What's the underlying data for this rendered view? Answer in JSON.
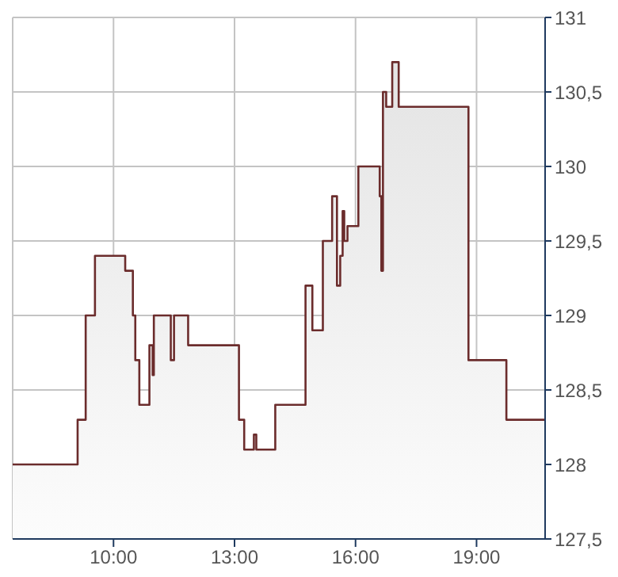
{
  "chart_data": {
    "type": "area",
    "x": [
      7.5,
      9.11,
      9.11,
      9.31,
      9.31,
      9.54,
      9.54,
      10.29,
      10.29,
      10.48,
      10.48,
      10.54,
      10.54,
      10.64,
      10.64,
      10.89,
      10.89,
      10.97,
      10.97,
      11.0,
      11.0,
      11.42,
      11.42,
      11.5,
      11.5,
      11.85,
      11.85,
      13.11,
      13.11,
      13.24,
      13.24,
      13.48,
      13.48,
      13.54,
      13.54,
      14.01,
      14.01,
      14.76,
      14.76,
      14.93,
      14.93,
      15.19,
      15.19,
      15.42,
      15.42,
      15.54,
      15.54,
      15.62,
      15.62,
      15.68,
      15.68,
      15.72,
      15.72,
      15.8,
      15.8,
      16.07,
      16.07,
      16.6,
      16.6,
      16.64,
      16.64,
      16.68,
      16.68,
      16.76,
      16.76,
      16.91,
      16.91,
      17.07,
      17.07,
      18.8,
      18.8,
      19.74,
      19.74,
      20.7
    ],
    "series": [
      {
        "color": "#6b2c2c",
        "values": [
          128.0,
          128.0,
          128.3,
          128.3,
          129.0,
          129.0,
          129.4,
          129.4,
          129.3,
          129.3,
          129.0,
          129.0,
          128.7,
          128.7,
          128.4,
          128.4,
          128.8,
          128.8,
          128.6,
          128.6,
          129.0,
          129.0,
          128.7,
          128.7,
          129.0,
          129.0,
          128.8,
          128.8,
          128.3,
          128.3,
          128.1,
          128.1,
          128.2,
          128.2,
          128.1,
          128.1,
          128.4,
          128.4,
          129.2,
          129.2,
          128.9,
          128.9,
          129.5,
          129.5,
          129.8,
          129.8,
          129.2,
          129.2,
          129.4,
          129.4,
          129.7,
          129.7,
          129.5,
          129.5,
          129.6,
          129.6,
          130.0,
          130.0,
          129.8,
          129.8,
          129.3,
          129.3,
          130.5,
          130.5,
          130.4,
          130.4,
          130.7,
          130.7,
          130.4,
          130.4,
          128.7,
          128.7,
          128.3,
          128.3
        ]
      }
    ],
    "xlim": [
      7.5,
      20.7
    ],
    "xticks": [
      {
        "value": 10,
        "label": "10:00"
      },
      {
        "value": 13,
        "label": "13:00"
      },
      {
        "value": 16,
        "label": "16:00"
      },
      {
        "value": 19,
        "label": "19:00"
      }
    ],
    "ylim": [
      127.5,
      131
    ],
    "yticks": [
      {
        "value": 127.5,
        "label": "127,5"
      },
      128,
      {
        "value": 128.5,
        "label": "128,5"
      },
      129,
      {
        "value": 129.5,
        "label": "129,5"
      },
      130,
      {
        "value": 130.5,
        "label": "130,5"
      },
      131
    ],
    "grid": true,
    "legend": false
  }
}
